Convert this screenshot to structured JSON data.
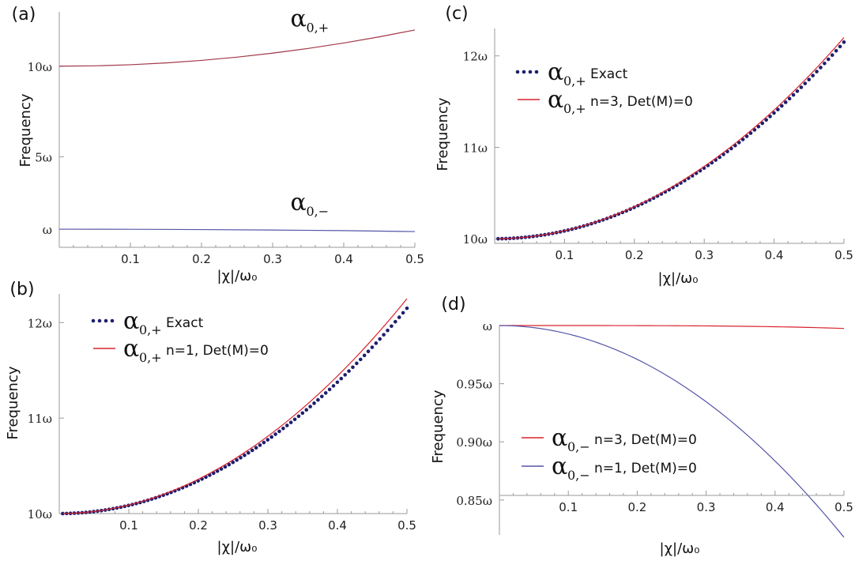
{
  "figure": {
    "description_free": true
  },
  "colors": {
    "exact": "#1e1e6e",
    "red": "#d9232e",
    "blue": "#5555a8",
    "maroon": "#a03848",
    "axis": "#9a9a9a"
  },
  "chart_data": [
    {
      "id": "a",
      "panel_label": "(a)",
      "type": "line",
      "xlabel": "|χ|/ω₀",
      "ylabel": "Frequency",
      "xlim": [
        0,
        0.5
      ],
      "ylim": [
        0,
        13
      ],
      "x_ticks": [
        "0.1",
        "0.2",
        "0.3",
        "0.4",
        "0.5"
      ],
      "y_ticks": [
        {
          "v": 1,
          "label": "ω"
        },
        {
          "v": 5,
          "label": "5ω"
        },
        {
          "v": 10,
          "label": "10ω"
        }
      ],
      "series": [
        {
          "name": "α0,+",
          "color": "#a03848",
          "style": "line",
          "x": [
            0,
            0.05,
            0.1,
            0.15,
            0.2,
            0.25,
            0.3,
            0.35,
            0.4,
            0.45,
            0.5
          ],
          "y": [
            10.0,
            10.02,
            10.08,
            10.18,
            10.32,
            10.5,
            10.72,
            10.98,
            11.28,
            11.62,
            12.0
          ]
        },
        {
          "name": "α0,−",
          "color": "#5555a8",
          "style": "line",
          "x": [
            0,
            0.1,
            0.2,
            0.3,
            0.4,
            0.5
          ],
          "y": [
            1.0,
            0.995,
            0.98,
            0.955,
            0.92,
            0.87
          ]
        }
      ],
      "annotations": [
        {
          "sym": "α",
          "sub": "0,+",
          "x": 0.325,
          "y": 12.2
        },
        {
          "sym": "α",
          "sub": "0,−",
          "x": 0.325,
          "y": 2.05
        }
      ]
    },
    {
      "id": "b",
      "panel_label": "(b)",
      "type": "line",
      "xlabel": "|χ|/ω₀",
      "ylabel": "Frequency",
      "xlim": [
        0,
        0.5
      ],
      "ylim": [
        10,
        12.3
      ],
      "x_ticks": [
        "0.1",
        "0.2",
        "0.3",
        "0.4",
        "0.5"
      ],
      "y_ticks": [
        {
          "v": 10,
          "label": "10ω"
        },
        {
          "v": 11,
          "label": "11ω"
        },
        {
          "v": 12,
          "label": "12ω"
        }
      ],
      "series": [
        {
          "name": "α0,+ Exact",
          "color": "#1e1e6e",
          "style": "dots",
          "x_start": 0.005,
          "x_end": 0.5,
          "n": 90,
          "exponent": 2,
          "y0": 10,
          "y_end": 12.15
        },
        {
          "name": "α0,+ n=1, Det(M)=0",
          "color": "#d9232e",
          "style": "line",
          "x_start": 0.005,
          "x_end": 0.5,
          "n": 60,
          "exponent": 2,
          "y0": 10,
          "y_end": 12.25
        }
      ],
      "legend": [
        {
          "sym": "α",
          "sub": "0,+",
          "text": "Exact",
          "marker": "dots",
          "color": "#1e1e6e"
        },
        {
          "sym": "α",
          "sub": "0,+",
          "text": "n=1, Det(M)=0",
          "marker": "line",
          "color": "#d9232e"
        }
      ]
    },
    {
      "id": "c",
      "panel_label": "(c)",
      "type": "line",
      "xlabel": "|χ|/ω₀",
      "ylabel": "Frequency",
      "xlim": [
        0,
        0.5
      ],
      "ylim": [
        9.95,
        12.3
      ],
      "x_ticks": [
        "0.1",
        "0.2",
        "0.3",
        "0.4",
        "0.5"
      ],
      "y_ticks": [
        {
          "v": 10,
          "label": "10ω"
        },
        {
          "v": 11,
          "label": "11ω"
        },
        {
          "v": 12,
          "label": "12ω"
        }
      ],
      "series": [
        {
          "name": "α0,+ Exact",
          "color": "#1e1e6e",
          "style": "dots",
          "x_start": 0.005,
          "x_end": 0.5,
          "n": 90,
          "exponent": 2,
          "y0": 10,
          "y_end": 12.15
        },
        {
          "name": "α0,+ n=3, Det(M)=0",
          "color": "#d9232e",
          "style": "line",
          "x_start": 0.005,
          "x_end": 0.5,
          "n": 60,
          "exponent": 2,
          "y0": 10,
          "y_end": 12.2
        }
      ],
      "legend": [
        {
          "sym": "α",
          "sub": "0,+",
          "text": "Exact",
          "marker": "dots",
          "color": "#1e1e6e"
        },
        {
          "sym": "α",
          "sub": "0,+",
          "text": "n=3, Det(M)=0",
          "marker": "line",
          "color": "#d9232e"
        }
      ]
    },
    {
      "id": "d",
      "panel_label": "(d)",
      "type": "line",
      "xlabel": "|χ|/ω₀",
      "ylabel": "Frequency",
      "xlim": [
        0,
        0.5
      ],
      "ylim": [
        0.82,
        1.0
      ],
      "x_ticks": [
        "0.1",
        "0.2",
        "0.3",
        "0.4",
        "0.5"
      ],
      "y_ticks": [
        {
          "v": 0.85,
          "label": "0.85ω"
        },
        {
          "v": 0.9,
          "label": "0.90ω"
        },
        {
          "v": 0.95,
          "label": "0.95ω"
        },
        {
          "v": 1.0,
          "label": "ω"
        }
      ],
      "series": [
        {
          "name": "α0,− n=3, Det(M)=0",
          "color": "#d9232e",
          "style": "line",
          "x_start": 0,
          "x_end": 0.5,
          "n": 40,
          "exponent": 4,
          "y0": 1.0,
          "y_end": 0.9975
        },
        {
          "name": "α0,− n=1, Det(M)=0",
          "color": "#5555a8",
          "style": "line",
          "x_start": 0,
          "x_end": 0.5,
          "n": 60,
          "exponent": 2,
          "y0": 1.0,
          "y_end": 0.818
        }
      ],
      "legend": [
        {
          "sym": "α",
          "sub": "0,−",
          "text": "n=3, Det(M)=0",
          "marker": "line",
          "color": "#d9232e"
        },
        {
          "sym": "α",
          "sub": "0,−",
          "text": "n=1, Det(M)=0",
          "marker": "line",
          "color": "#5555a8"
        }
      ]
    }
  ]
}
